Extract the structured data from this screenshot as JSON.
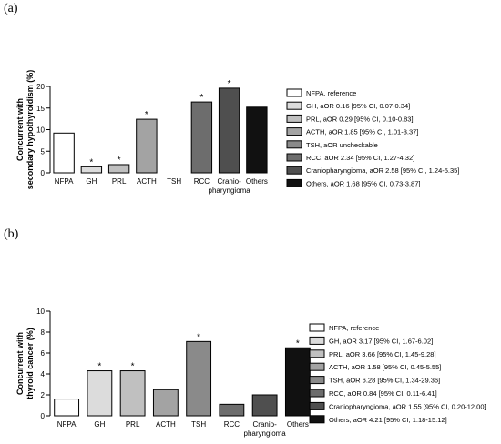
{
  "chart_data": [
    {
      "panel_label": "(a)",
      "type": "bar",
      "ylabel_lines": [
        "Concurrent with",
        "secondary hypothyroidism (%)"
      ],
      "ylim": [
        0,
        20
      ],
      "yticks": [
        0,
        5,
        10,
        15,
        20
      ],
      "categories": [
        "NFPA",
        "GH",
        "PRL",
        "ACTH",
        "TSH",
        "RCC",
        "Cranio-\npharyngioma",
        "Others"
      ],
      "values": [
        9.2,
        1.4,
        1.9,
        12.4,
        0,
        16.4,
        19.6,
        15.2
      ],
      "significant": [
        false,
        true,
        true,
        true,
        false,
        true,
        true,
        false
      ],
      "colors": [
        "#ffffff",
        "#dcdcdc",
        "#c0c0c0",
        "#a3a3a3",
        "#8a8a8a",
        "#6d6d6d",
        "#4f4f4f",
        "#111111"
      ],
      "legend": [
        "NFPA, reference",
        "GH, aOR 0.16 [95% CI, 0.07-0.34]",
        "PRL, aOR 0.29 [95% CI, 0.10-0.83]",
        "ACTH, aOR 1.85 [95% CI, 1.01-3.37]",
        "TSH, aOR uncheckable",
        "RCC, aOR 2.34 [95% CI, 1.27-4.32]",
        "Craniopharyngioma, aOR 2.58 [95% CI, 1.24-5.35]",
        "Others, aOR 1.68 [95% CI, 0.73-3.87]"
      ],
      "star_symbol": "*"
    },
    {
      "panel_label": "(b)",
      "type": "bar",
      "ylabel_lines": [
        "Concurrent with",
        "thyroid cancer (%)"
      ],
      "ylim": [
        0,
        10
      ],
      "yticks": [
        0,
        2,
        4,
        6,
        8,
        10
      ],
      "categories": [
        "NFPA",
        "GH",
        "PRL",
        "ACTH",
        "TSH",
        "RCC",
        "Cranio-\npharyngioma",
        "Others"
      ],
      "values": [
        1.6,
        4.3,
        4.3,
        2.5,
        7.1,
        1.1,
        2.0,
        6.5
      ],
      "significant": [
        false,
        true,
        true,
        false,
        true,
        false,
        false,
        true
      ],
      "colors": [
        "#ffffff",
        "#dcdcdc",
        "#c0c0c0",
        "#a3a3a3",
        "#8a8a8a",
        "#6d6d6d",
        "#4f4f4f",
        "#111111"
      ],
      "legend": [
        "NFPA, reference",
        "GH, aOR 3.17 [95% CI, 1.67-6.02]",
        "PRL, aOR 3.66 [95% CI, 1.45-9.28]",
        "ACTH, aOR 1.58 [95% CI, 0.45-5.55]",
        "TSH, aOR 6.28 [95% CI, 1.34-29.36]",
        "RCC, aOR 0.84 [95% CI, 0.11-6.41]",
        "Craniopharyngioma, aOR 1.55 [95% CI, 0.20-12.00]",
        "Others, aOR 4.21 [95% CI, 1.18-15.12]"
      ],
      "star_symbol": "*"
    }
  ]
}
